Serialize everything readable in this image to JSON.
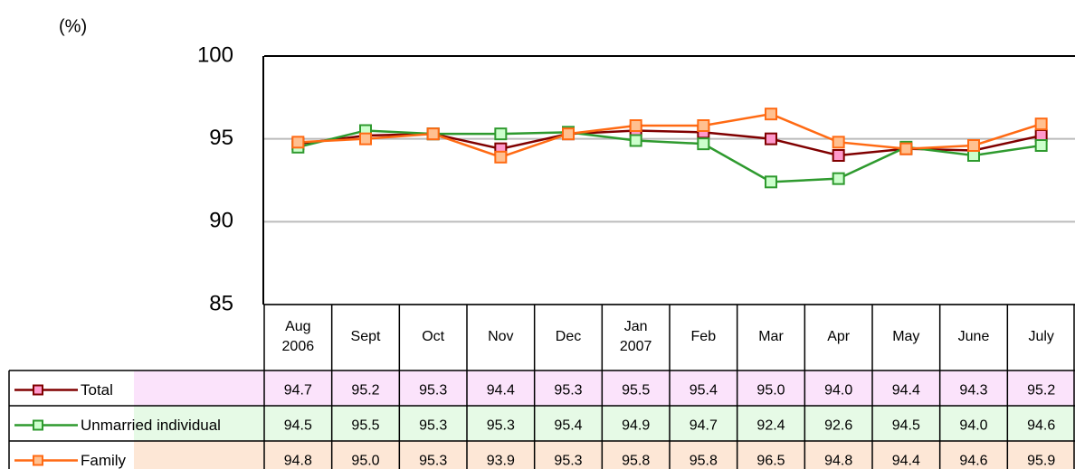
{
  "chart_data": {
    "type": "line",
    "y_label": "(%)",
    "categories": [
      "Aug\n2006",
      "Sept",
      "Oct",
      "Nov",
      "Dec",
      "Jan\n2007",
      "Feb",
      "Mar",
      "Apr",
      "May",
      "June",
      "July"
    ],
    "ylim": [
      85,
      100
    ],
    "yticks": [
      85,
      90,
      95,
      100
    ],
    "grid": true,
    "series": [
      {
        "name": "Total",
        "color": "#800000",
        "marker_color": "#ff99cc",
        "row_color": "#fbe3fb",
        "values": [
          94.7,
          95.2,
          95.3,
          94.4,
          95.3,
          95.5,
          95.4,
          95.0,
          94.0,
          94.4,
          94.3,
          95.2
        ],
        "value_labels": [
          "94.7",
          "95.2",
          "95.3",
          "94.4",
          "95.3",
          "95.5",
          "95.4",
          "95.0",
          "94.0",
          "94.4",
          "94.3",
          "95.2"
        ]
      },
      {
        "name": "Unmarried individual",
        "color": "#2e9a2e",
        "marker_color": "#ccffcc",
        "row_color": "#e6fae6",
        "values": [
          94.5,
          95.5,
          95.3,
          95.3,
          95.4,
          94.9,
          94.7,
          92.4,
          92.6,
          94.5,
          94.0,
          94.6
        ],
        "value_labels": [
          "94.5",
          "95.5",
          "95.3",
          "95.3",
          "95.4",
          "94.9",
          "94.7",
          "92.4",
          "92.6",
          "94.5",
          "94.0",
          "94.6"
        ]
      },
      {
        "name": "Family",
        "color": "#ff6a13",
        "marker_color": "#ffc090",
        "row_color": "#fde7d6",
        "values": [
          94.8,
          95.0,
          95.3,
          93.9,
          95.3,
          95.8,
          95.8,
          96.5,
          94.8,
          94.4,
          94.6,
          95.9
        ],
        "value_labels": [
          "94.8",
          "95.0",
          "95.3",
          "93.9",
          "95.3",
          "95.8",
          "95.8",
          "96.5",
          "94.8",
          "94.4",
          "94.6",
          "95.9"
        ]
      }
    ]
  }
}
